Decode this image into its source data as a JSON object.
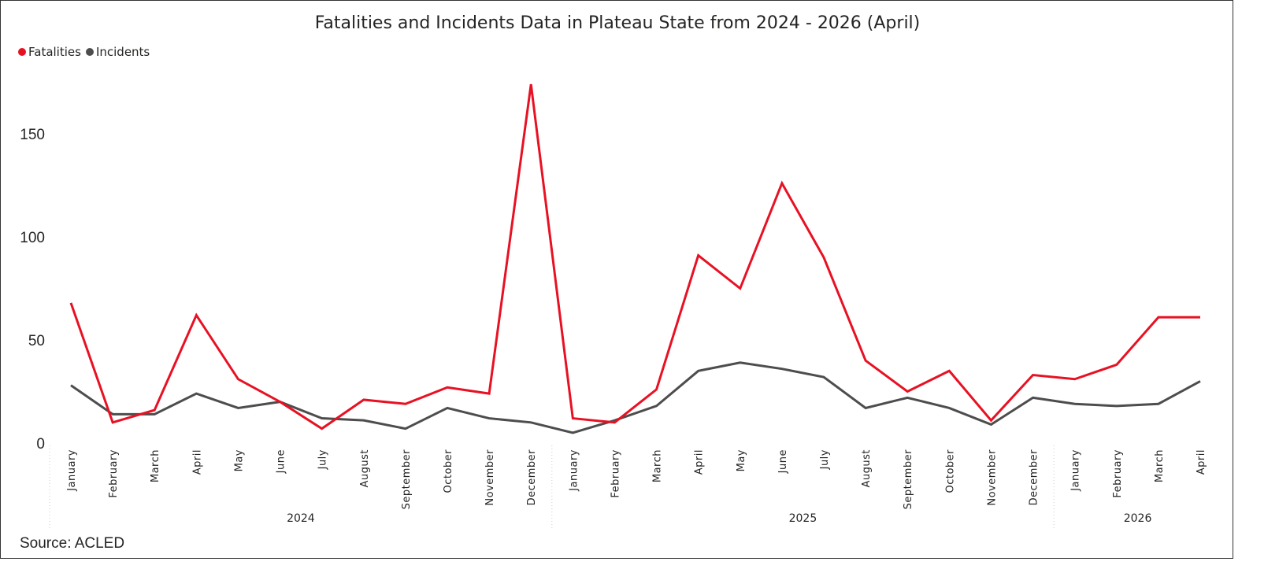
{
  "chart_data": {
    "type": "line",
    "title": "Fatalities and Incidents Data in Plateau State from 2024 - 2026 (April)",
    "legend_position": "top-left",
    "grid": false,
    "ylim": [
      0,
      180
    ],
    "yticks": [
      "0",
      "50",
      "100",
      "150"
    ],
    "x": [
      "January",
      "February",
      "March",
      "April",
      "May",
      "June",
      "July",
      "August",
      "September",
      "October",
      "November",
      "December",
      "January",
      "February",
      "March",
      "April",
      "May",
      "June",
      "July",
      "August",
      "September",
      "October",
      "November",
      "December",
      "January",
      "February",
      "March",
      "April"
    ],
    "years": [
      {
        "label": "2024",
        "months": 12
      },
      {
        "label": "2025",
        "months": 12
      },
      {
        "label": "2026",
        "months": 4
      }
    ],
    "series": [
      {
        "name": "Fatalities",
        "color": "#e81123",
        "values": [
          68,
          10,
          16,
          62,
          31,
          20,
          7,
          21,
          19,
          27,
          24,
          174,
          12,
          10,
          26,
          91,
          75,
          126,
          90,
          40,
          25,
          35,
          11,
          33,
          31,
          38,
          61,
          61
        ]
      },
      {
        "name": "Incidents",
        "color": "#4d4d4d",
        "values": [
          28,
          14,
          14,
          24,
          17,
          20,
          12,
          11,
          7,
          17,
          12,
          10,
          5,
          11,
          18,
          35,
          39,
          36,
          32,
          17,
          22,
          17,
          9,
          22,
          19,
          18,
          19,
          30
        ]
      }
    ]
  },
  "source": "Source: ACLED"
}
